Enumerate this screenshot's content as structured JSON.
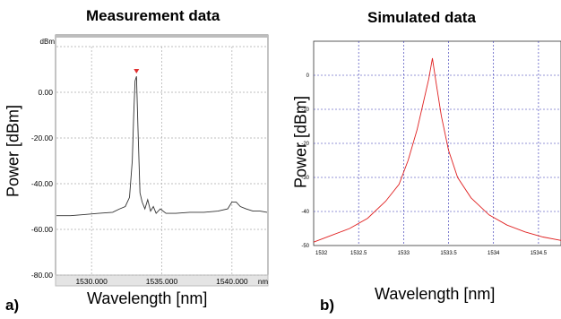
{
  "chart_data": [
    {
      "type": "line",
      "title": "Measurement data",
      "panel_label": "a)",
      "xlabel": "Wavelength [nm]",
      "ylabel": "Power [dBm]",
      "y_unit": "dBm",
      "x_unit": "nm",
      "xlim": [
        1527.5,
        1542.5
      ],
      "ylim": [
        -80,
        20
      ],
      "x_ticks": [
        {
          "value": 1530,
          "label": "1530.000"
        },
        {
          "value": 1535,
          "label": "1535.000"
        },
        {
          "value": 1540,
          "label": "1540.000"
        }
      ],
      "y_ticks": [
        {
          "value": 0,
          "label": "0.00"
        },
        {
          "value": -20,
          "label": "-20.00"
        },
        {
          "value": -40,
          "label": "-40.00"
        },
        {
          "value": -60,
          "label": "-60.00"
        },
        {
          "value": -80,
          "label": "-80.00"
        }
      ],
      "grid": true,
      "marker": {
        "x": 1533.2,
        "y": 9
      },
      "series": [
        {
          "color": "#333333",
          "x": [
            1527.5,
            1528.5,
            1529.5,
            1530.5,
            1531.5,
            1532.0,
            1532.4,
            1532.7,
            1532.9,
            1533.0,
            1533.1,
            1533.2,
            1533.3,
            1533.45,
            1533.6,
            1533.8,
            1534.0,
            1534.2,
            1534.4,
            1534.6,
            1534.9,
            1535.3,
            1536.0,
            1537.0,
            1538.0,
            1539.0,
            1539.7,
            1540.0,
            1540.3,
            1540.6,
            1541.0,
            1541.5,
            1542.0,
            1542.5
          ],
          "y": [
            -54,
            -54,
            -53.5,
            -53,
            -52.5,
            -51,
            -50,
            -46,
            -30,
            -10,
            5,
            7,
            -15,
            -44,
            -48,
            -51,
            -47,
            -52,
            -50,
            -53,
            -51,
            -53,
            -53,
            -52.5,
            -52.5,
            -52,
            -51,
            -48,
            -48,
            -50,
            -51,
            -52,
            -52,
            -52.5
          ]
        }
      ]
    },
    {
      "type": "line",
      "title": "Simulated data",
      "panel_label": "b)",
      "xlabel": "Wavelength [nm]",
      "ylabel": "Power [dBm]",
      "xlim": [
        1532,
        1534.75
      ],
      "ylim": [
        -50,
        10
      ],
      "x_ticks": [
        {
          "value": 1532,
          "label": "1532"
        },
        {
          "value": 1532.5,
          "label": "1532.5"
        },
        {
          "value": 1533,
          "label": "1533"
        },
        {
          "value": 1533.5,
          "label": "1533.5"
        },
        {
          "value": 1534,
          "label": "1534"
        },
        {
          "value": 1534.5,
          "label": "1534.5"
        }
      ],
      "y_ticks": [
        {
          "value": 0,
          "label": "0"
        },
        {
          "value": -10,
          "label": "-10"
        },
        {
          "value": -20,
          "label": "-20"
        },
        {
          "value": -30,
          "label": "-30"
        },
        {
          "value": -40,
          "label": "-40"
        },
        {
          "value": -50,
          "label": "-50"
        }
      ],
      "grid": true,
      "series": [
        {
          "color": "#e02020",
          "x": [
            1532.0,
            1532.2,
            1532.4,
            1532.6,
            1532.8,
            1532.95,
            1533.05,
            1533.15,
            1533.22,
            1533.28,
            1533.32,
            1533.36,
            1533.42,
            1533.5,
            1533.6,
            1533.75,
            1533.95,
            1534.15,
            1534.35,
            1534.55,
            1534.75
          ],
          "y": [
            -49,
            -47,
            -45,
            -42,
            -37,
            -32,
            -25,
            -16,
            -8,
            -1,
            5,
            -2,
            -12,
            -22,
            -30,
            -36,
            -41,
            -44,
            -46,
            -47.5,
            -48.5
          ]
        }
      ]
    }
  ]
}
